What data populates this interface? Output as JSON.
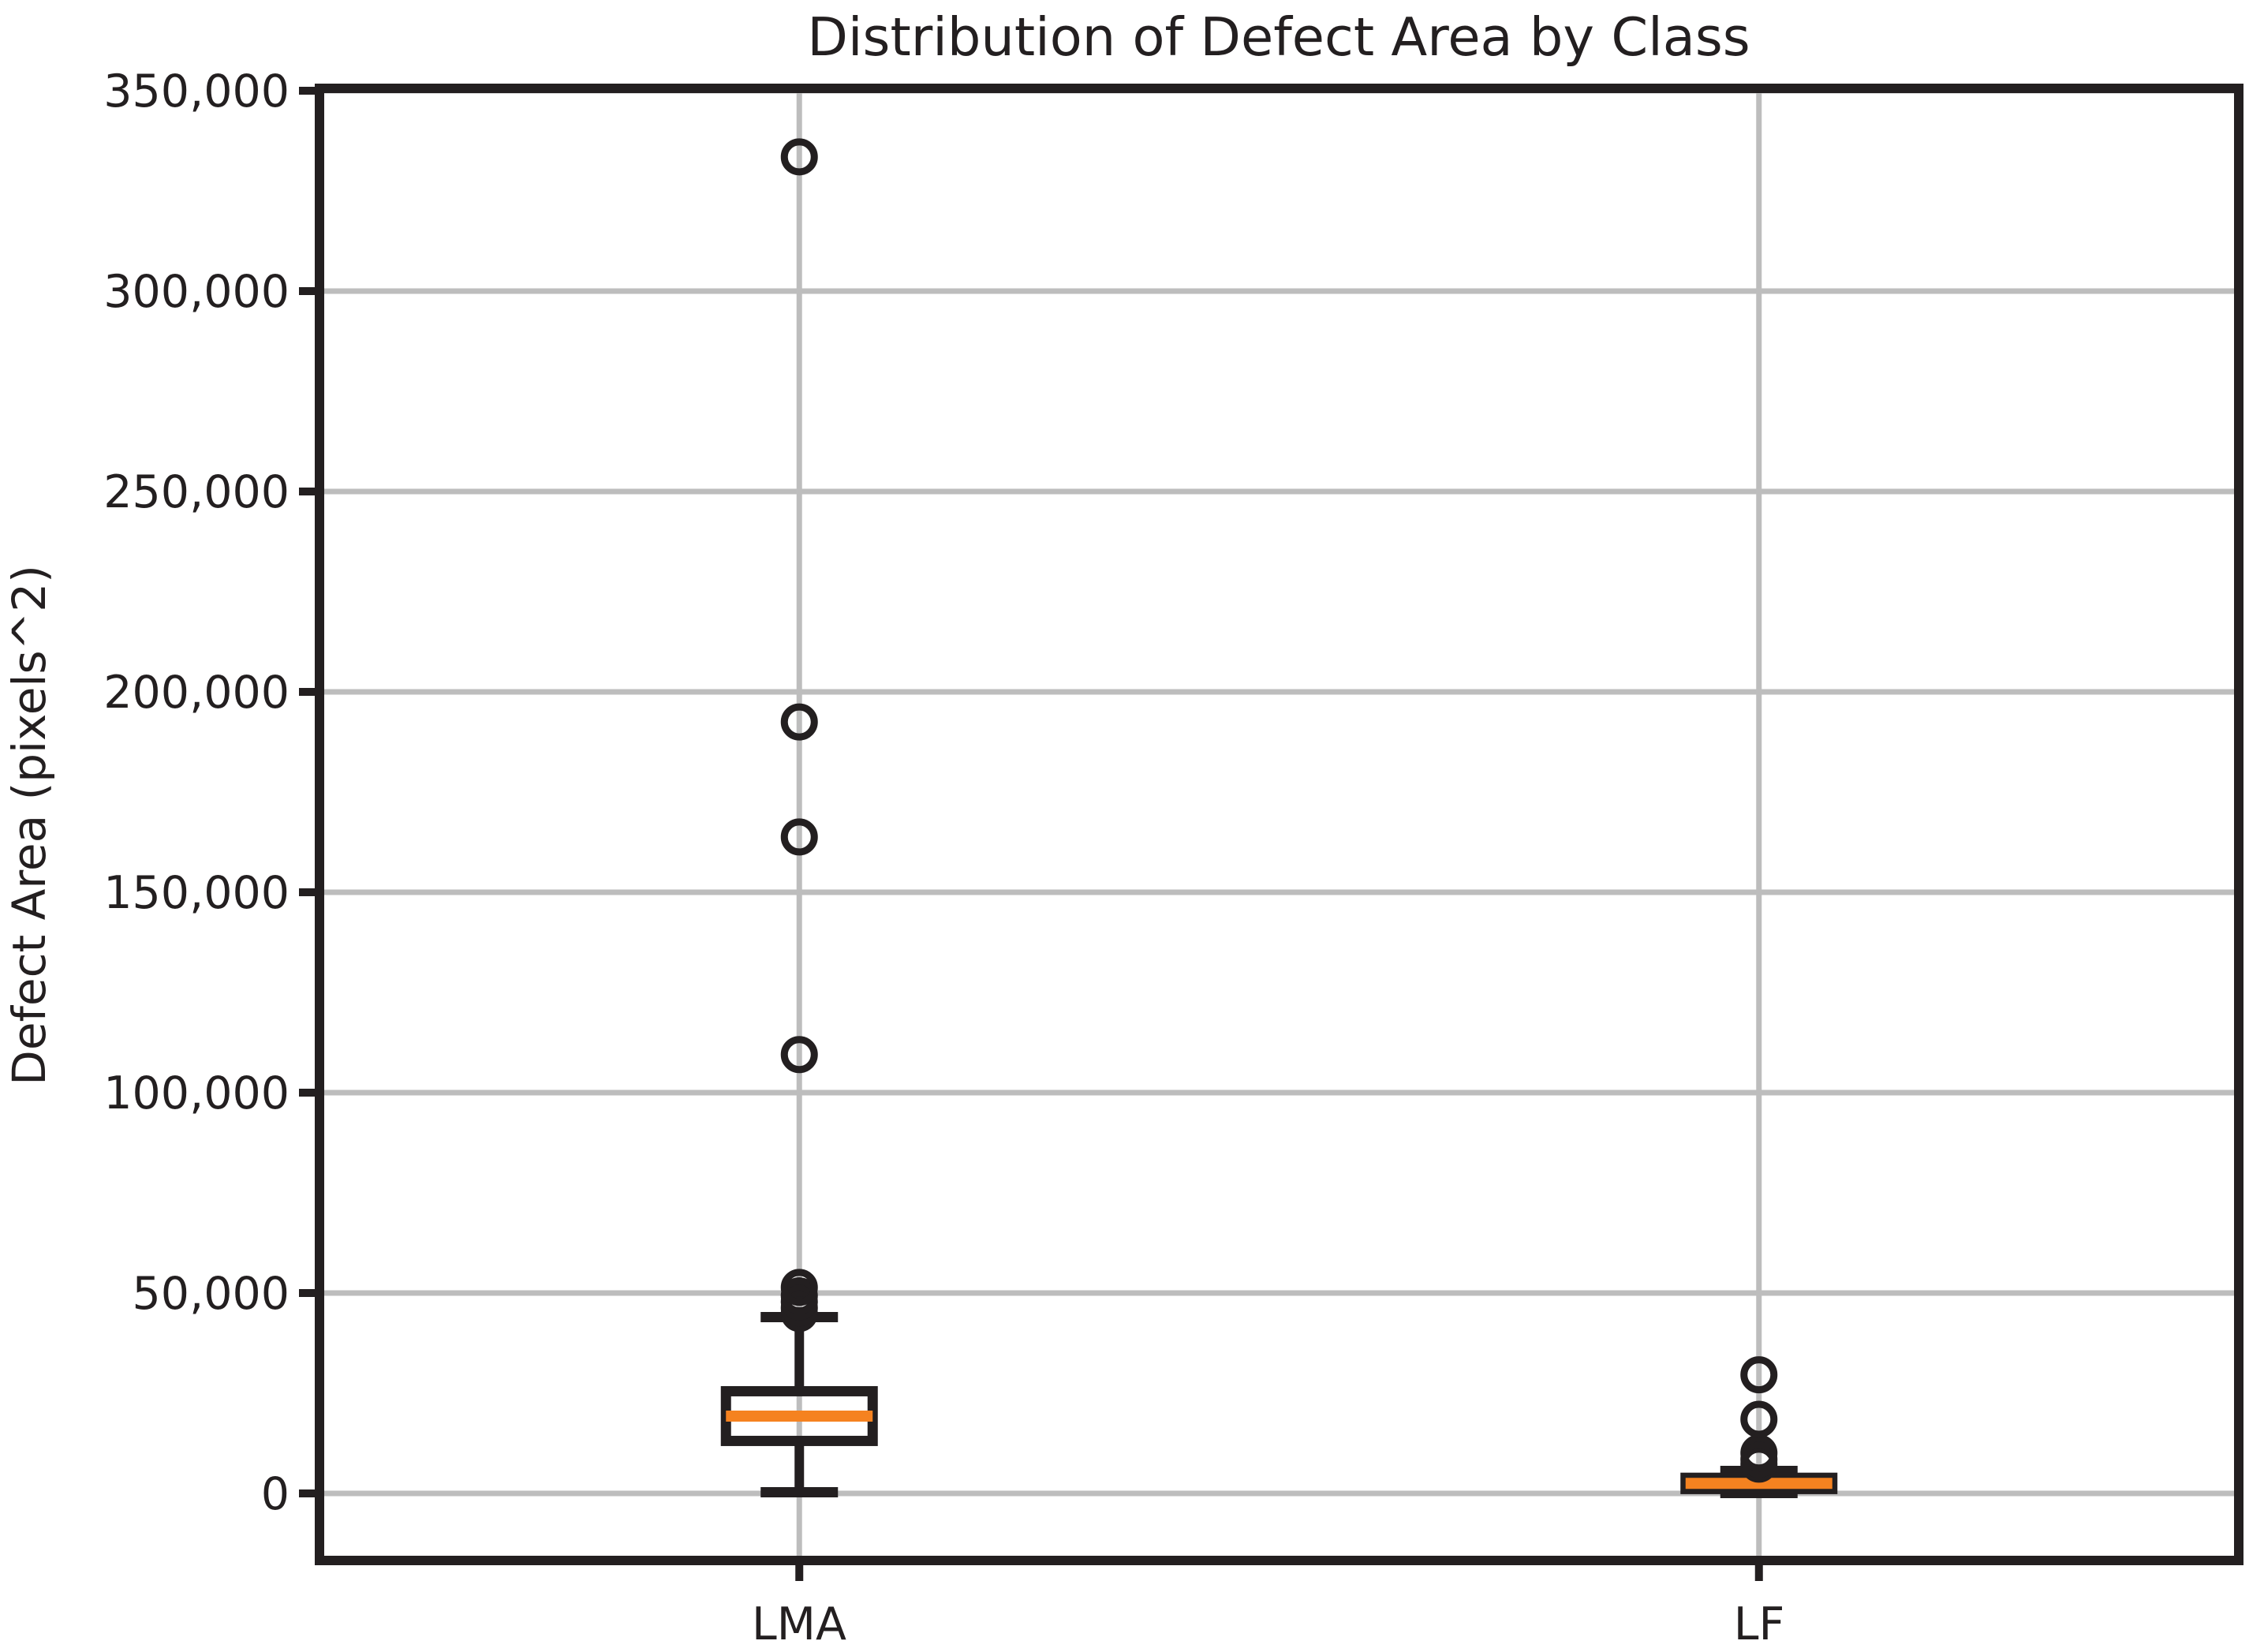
{
  "figure": {
    "title": "Distribution of Defect Area by Class",
    "ylabel": "Defect Area (pixels^2)"
  },
  "chart_data": {
    "type": "boxplot",
    "title": "Distribution of Defect Area by Class",
    "xlabel": "",
    "ylabel": "Defect Area (pixels^2)",
    "categories": [
      "LMA",
      "LF"
    ],
    "y_ticks": [
      0,
      50000,
      100000,
      150000,
      200000,
      250000,
      300000,
      350000
    ],
    "y_tick_labels": [
      "0",
      "50,000",
      "100,000",
      "150,000",
      "200,000",
      "250,000",
      "300,000",
      "350,000"
    ],
    "ylim": [
      -16700,
      350600
    ],
    "grid": true,
    "legend": "none",
    "series": [
      {
        "name": "LMA",
        "whisker_low": 300,
        "q1": 13100,
        "median": 19300,
        "q3": 25500,
        "whisker_high": 44000,
        "outliers": [
          44900,
          46300,
          47800,
          49300,
          51400,
          109500,
          163800,
          192500,
          333500
        ]
      },
      {
        "name": "LF",
        "whisker_low": 100,
        "q1": 1100,
        "median": 2500,
        "q3": 3900,
        "whisker_high": 5600,
        "outliers": [
          7300,
          8500,
          10100,
          18500,
          29600
        ]
      }
    ],
    "colors": {
      "box_line": "#231f20",
      "median": "#f58220",
      "grid": "#bdbdbd",
      "spine": "#231f20",
      "text": "#231f20",
      "background": "#ffffff"
    }
  }
}
